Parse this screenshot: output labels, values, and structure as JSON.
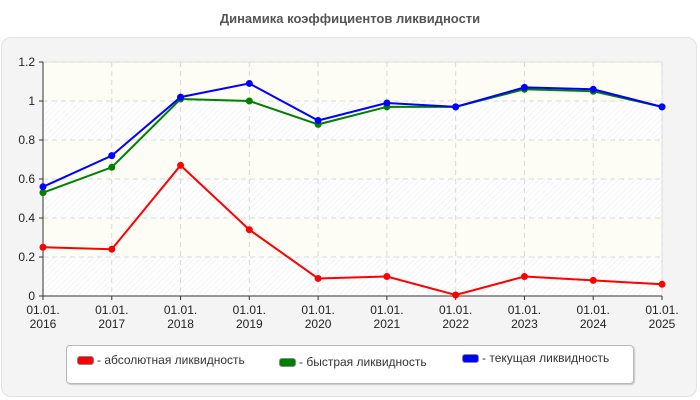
{
  "title": "Динамика коэффициентов ликвидности",
  "chart_data": {
    "type": "line",
    "title": "Динамика коэффициентов ликвидности",
    "xlabel": "",
    "ylabel": "",
    "categories": [
      "01.01.\n2016",
      "01.01.\n2017",
      "01.01.\n2018",
      "01.01.\n2019",
      "01.01.\n2020",
      "01.01.\n2021",
      "01.01.\n2022",
      "01.01.\n2023",
      "01.01.\n2024",
      "01.01.\n2025"
    ],
    "x_ticks": [
      {
        "line1": "01.01.",
        "line2": "2016"
      },
      {
        "line1": "01.01.",
        "line2": "2017"
      },
      {
        "line1": "01.01.",
        "line2": "2018"
      },
      {
        "line1": "01.01.",
        "line2": "2019"
      },
      {
        "line1": "01.01.",
        "line2": "2020"
      },
      {
        "line1": "01.01.",
        "line2": "2021"
      },
      {
        "line1": "01.01.",
        "line2": "2022"
      },
      {
        "line1": "01.01.",
        "line2": "2023"
      },
      {
        "line1": "01.01.",
        "line2": "2024"
      },
      {
        "line1": "01.01.",
        "line2": "2025"
      }
    ],
    "y_ticks": [
      "0",
      "0.2",
      "0.4",
      "0.6",
      "0.8",
      "1",
      "1.2"
    ],
    "ylim": [
      0,
      1.2
    ],
    "grid": true,
    "legend_position": "bottom",
    "series": [
      {
        "name": "абсолютная ликвидность",
        "color": "#ff0000",
        "values": [
          0.25,
          0.24,
          0.67,
          0.34,
          0.09,
          0.1,
          0.005,
          0.1,
          0.08,
          0.06
        ]
      },
      {
        "name": "быстрая ликвидность",
        "color": "#008000",
        "values": [
          0.53,
          0.66,
          1.01,
          1.0,
          0.88,
          0.97,
          0.97,
          1.06,
          1.05,
          0.97
        ]
      },
      {
        "name": "текущая ликвидность",
        "color": "#0000ff",
        "values": [
          0.56,
          0.72,
          1.02,
          1.09,
          0.9,
          0.99,
          0.97,
          1.07,
          1.06,
          0.97
        ]
      }
    ]
  },
  "legend": {
    "items": [
      {
        "label": "- абсолютная ликвидность",
        "color": "#ff0000"
      },
      {
        "label": "- быстрая ликвидность",
        "color": "#008000"
      },
      {
        "label": "- текущая ликвидность",
        "color": "#0000ff"
      }
    ]
  }
}
